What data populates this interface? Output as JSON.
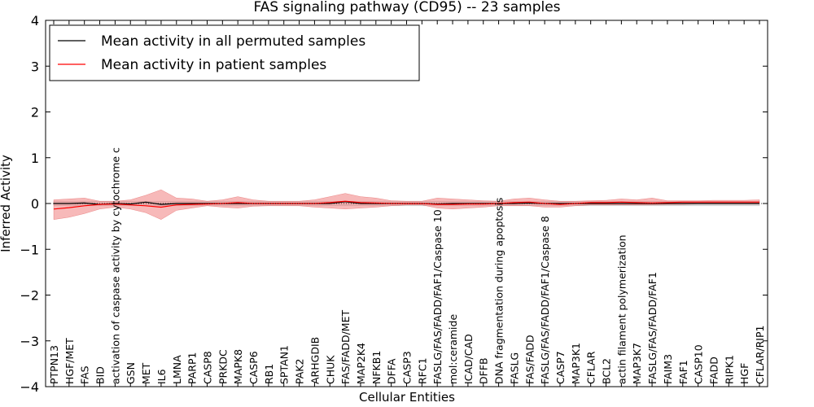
{
  "chart_data": {
    "type": "line",
    "title": "FAS signaling pathway (CD95) -- 23 samples",
    "xlabel": "Cellular Entities",
    "ylabel": "Inferred Activity",
    "ylim": [
      -4,
      4
    ],
    "yticks": [
      -4,
      -3,
      -2,
      -1,
      0,
      1,
      2,
      3,
      4
    ],
    "ytick_labels": [
      "−4",
      "−3",
      "−2",
      "−1",
      "0",
      "1",
      "2",
      "3",
      "4"
    ],
    "legend_position": "top-left",
    "categories": [
      "PTPN13",
      "HGF/MET",
      "FAS",
      "BID",
      "activation of caspase activity by cytochrome c",
      "GSN",
      "MET",
      "IL6",
      "LMNA",
      "PARP1",
      "CASP8",
      "PRKDC",
      "MAPK8",
      "CASP6",
      "RB1",
      "SPTAN1",
      "PAK2",
      "ARHGDIB",
      "CHUK",
      "FAS/FADD/MET",
      "MAP2K4",
      "NFKB1",
      "DFFA",
      "CASP3",
      "RFC1",
      "FASLG/FAS/FADD/FAF1/Caspase 10",
      "mol:ceramide",
      "ICAD/CAD",
      "DFFB",
      "DNA fragmentation during apoptosis",
      "FASLG",
      "FAS/FADD",
      "FASLG/FAS/FADD/FAF1/Caspase 8",
      "CASP7",
      "MAP3K1",
      "CFLAR",
      "BCL2",
      "actin filament polymerization",
      "MAP3K7",
      "FASLG/FAS/FADD/FAF1",
      "FAIM3",
      "FAF1",
      "CASP10",
      "FADD",
      "RIPK1",
      "HGF",
      "CFLAR/RIP1"
    ],
    "series": [
      {
        "name": "Mean activity in all permuted samples",
        "color": "#000000",
        "band_color": "#c8c8c8",
        "values": [
          0.0,
          0.0,
          0.01,
          -0.02,
          0.0,
          -0.01,
          0.03,
          -0.02,
          0.0,
          0.0,
          0.0,
          0.0,
          0.0,
          0.0,
          0.0,
          0.0,
          0.0,
          0.0,
          0.0,
          0.04,
          0.0,
          0.0,
          0.0,
          0.0,
          0.0,
          -0.01,
          0.0,
          0.0,
          0.0,
          0.0,
          0.0,
          0.01,
          0.0,
          0.0,
          0.0,
          0.0,
          0.0,
          0.0,
          0.0,
          0.0,
          0.0,
          0.0,
          0.0,
          0.0,
          0.0,
          0.0,
          0.0
        ],
        "lower": [
          -0.05,
          -0.05,
          -0.05,
          -0.05,
          -0.05,
          -0.05,
          -0.05,
          -0.05,
          -0.05,
          -0.05,
          -0.05,
          -0.05,
          -0.05,
          -0.05,
          -0.05,
          -0.05,
          -0.05,
          -0.05,
          -0.05,
          -0.05,
          -0.05,
          -0.05,
          -0.05,
          -0.05,
          -0.05,
          -0.05,
          -0.05,
          -0.05,
          -0.05,
          -0.05,
          -0.05,
          -0.05,
          -0.05,
          -0.05,
          -0.05,
          -0.05,
          -0.05,
          -0.05,
          -0.05,
          -0.05,
          -0.05,
          -0.05,
          -0.05,
          -0.05,
          -0.05,
          -0.05,
          -0.05
        ],
        "upper": [
          0.05,
          0.05,
          0.05,
          0.05,
          0.05,
          0.05,
          0.05,
          0.05,
          0.05,
          0.05,
          0.05,
          0.05,
          0.05,
          0.05,
          0.05,
          0.05,
          0.05,
          0.05,
          0.05,
          0.05,
          0.05,
          0.05,
          0.05,
          0.05,
          0.05,
          0.05,
          0.05,
          0.05,
          0.05,
          0.05,
          0.05,
          0.05,
          0.05,
          0.05,
          0.05,
          0.05,
          0.05,
          0.05,
          0.05,
          0.05,
          0.05,
          0.05,
          0.05,
          0.05,
          0.05,
          0.05,
          0.05
        ]
      },
      {
        "name": "Mean activity in patient samples",
        "color": "#ff0000",
        "band_color": "#f08080",
        "values": [
          -0.12,
          -0.09,
          -0.05,
          -0.02,
          -0.01,
          -0.03,
          -0.05,
          -0.08,
          -0.03,
          -0.02,
          -0.01,
          0.0,
          0.02,
          0.0,
          0.0,
          0.0,
          0.0,
          0.0,
          0.02,
          0.05,
          0.02,
          0.01,
          0.0,
          0.0,
          0.0,
          -0.02,
          -0.02,
          -0.01,
          -0.01,
          0.0,
          0.02,
          0.03,
          0.0,
          -0.02,
          0.0,
          0.02,
          0.02,
          0.03,
          0.02,
          0.01,
          0.02,
          0.03,
          0.03,
          0.03,
          0.03,
          0.03,
          0.03
        ],
        "lower": [
          -0.35,
          -0.3,
          -0.22,
          -0.12,
          -0.08,
          -0.12,
          -0.2,
          -0.35,
          -0.15,
          -0.1,
          -0.05,
          -0.08,
          -0.1,
          -0.06,
          -0.05,
          -0.05,
          -0.05,
          -0.08,
          -0.1,
          -0.12,
          -0.1,
          -0.08,
          -0.05,
          -0.03,
          -0.03,
          -0.1,
          -0.12,
          -0.1,
          -0.08,
          -0.05,
          -0.05,
          -0.05,
          -0.08,
          -0.08,
          -0.05,
          -0.03,
          -0.03,
          -0.03,
          -0.03,
          -0.03,
          -0.02,
          -0.02,
          -0.01,
          -0.01,
          -0.01,
          -0.01,
          -0.01
        ],
        "upper": [
          0.08,
          0.1,
          0.12,
          0.05,
          0.05,
          0.08,
          0.18,
          0.3,
          0.12,
          0.1,
          0.05,
          0.08,
          0.15,
          0.08,
          0.05,
          0.05,
          0.05,
          0.08,
          0.15,
          0.22,
          0.15,
          0.12,
          0.06,
          0.05,
          0.05,
          0.12,
          0.1,
          0.08,
          0.06,
          0.05,
          0.1,
          0.12,
          0.08,
          0.05,
          0.05,
          0.06,
          0.07,
          0.1,
          0.08,
          0.12,
          0.06,
          0.06,
          0.06,
          0.07,
          0.07,
          0.07,
          0.08
        ]
      }
    ]
  }
}
